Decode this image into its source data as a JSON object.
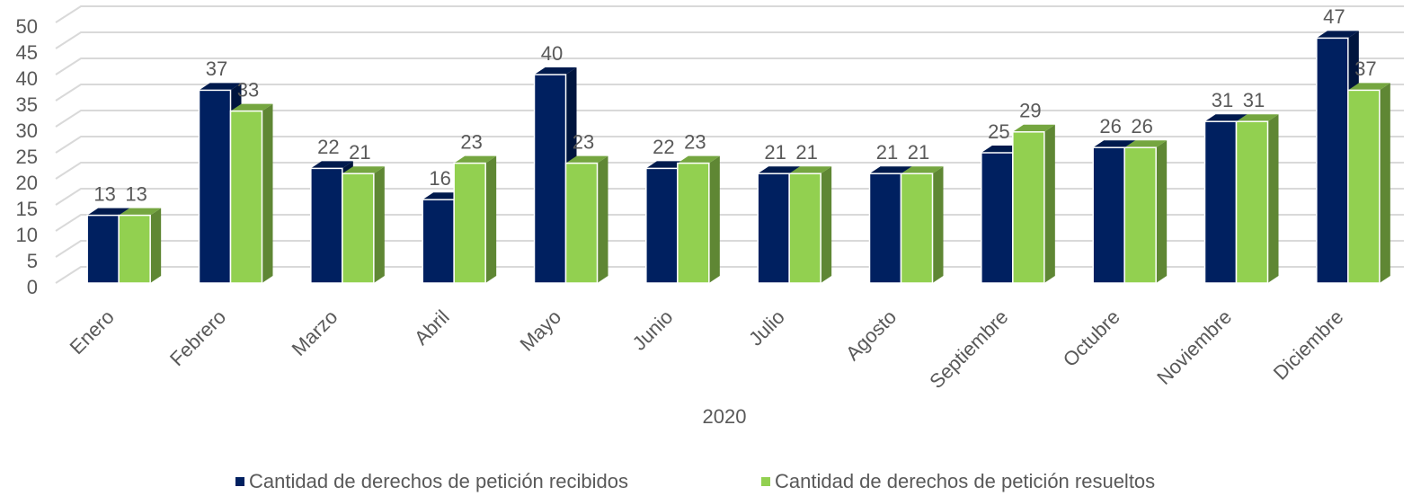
{
  "chart_data": {
    "type": "bar3d",
    "x_label": "2020",
    "categories": [
      "Enero",
      "Febrero",
      "Marzo",
      "Abril",
      "Mayo",
      "Junio",
      "Julio",
      "Agosto",
      "Septiembre",
      "Octubre",
      "Noviembre",
      "Diciembre"
    ],
    "series": [
      {
        "name": "Cantidad de derechos de petición recibidos",
        "color": "#002060",
        "values": [
          13,
          37,
          22,
          16,
          40,
          22,
          21,
          21,
          25,
          26,
          31,
          47
        ]
      },
      {
        "name": "Cantidad de derechos de petición resueltos",
        "color": "#92d050",
        "values": [
          13,
          33,
          21,
          23,
          23,
          23,
          21,
          21,
          29,
          26,
          31,
          37
        ]
      }
    ],
    "ylim": [
      0,
      50
    ],
    "yticks": [
      0,
      5,
      10,
      15,
      20,
      25,
      30,
      35,
      40,
      45,
      50
    ],
    "grid": true,
    "legend": "bottom"
  }
}
